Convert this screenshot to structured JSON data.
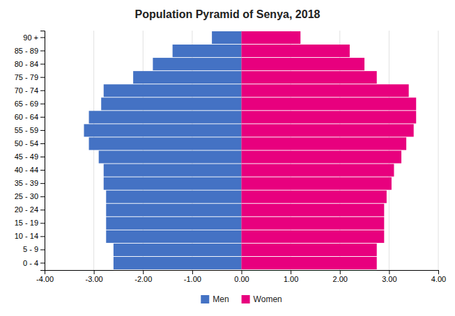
{
  "chart_data": {
    "type": "bar",
    "orientation": "horizontal",
    "stacked": true,
    "title": "Population Pyramid of Senya, 2018",
    "categories": [
      "0 - 4",
      "5 - 9",
      "10 - 14",
      "15 - 19",
      "20 - 24",
      "25 - 30",
      "35 - 39",
      "40 - 44",
      "45 - 49",
      "50 - 54",
      "55 - 59",
      "60 - 64",
      "65 - 69",
      "70 - 74",
      "75 - 79",
      "80 - 84",
      "85 - 89",
      "90 +"
    ],
    "series": [
      {
        "name": "Men",
        "color": "#4472C4",
        "values": [
          -2.6,
          -2.6,
          -2.75,
          -2.75,
          -2.75,
          -2.75,
          -2.8,
          -2.8,
          -2.9,
          -3.1,
          -3.2,
          -3.1,
          -2.85,
          -2.8,
          -2.2,
          -1.8,
          -1.4,
          -0.6
        ]
      },
      {
        "name": "Women",
        "color": "#E8007E",
        "values": [
          2.75,
          2.75,
          2.9,
          2.9,
          2.9,
          2.95,
          3.05,
          3.1,
          3.25,
          3.35,
          3.5,
          3.55,
          3.55,
          3.4,
          2.75,
          2.5,
          2.2,
          1.2
        ]
      }
    ],
    "xlim": [
      -4.0,
      4.0
    ],
    "xticks": [
      {
        "value": -4.0,
        "label": "-4.00"
      },
      {
        "value": -3.0,
        "label": "-3.00"
      },
      {
        "value": -2.0,
        "label": "-2.00"
      },
      {
        "value": -1.0,
        "label": "-1.00"
      },
      {
        "value": 0.0,
        "label": "0.00"
      },
      {
        "value": 1.0,
        "label": "1.00"
      },
      {
        "value": 2.0,
        "label": "2.00"
      },
      {
        "value": 3.0,
        "label": "3.00"
      },
      {
        "value": 4.0,
        "label": "4.00"
      }
    ],
    "grid": true,
    "legend": "bottom"
  }
}
